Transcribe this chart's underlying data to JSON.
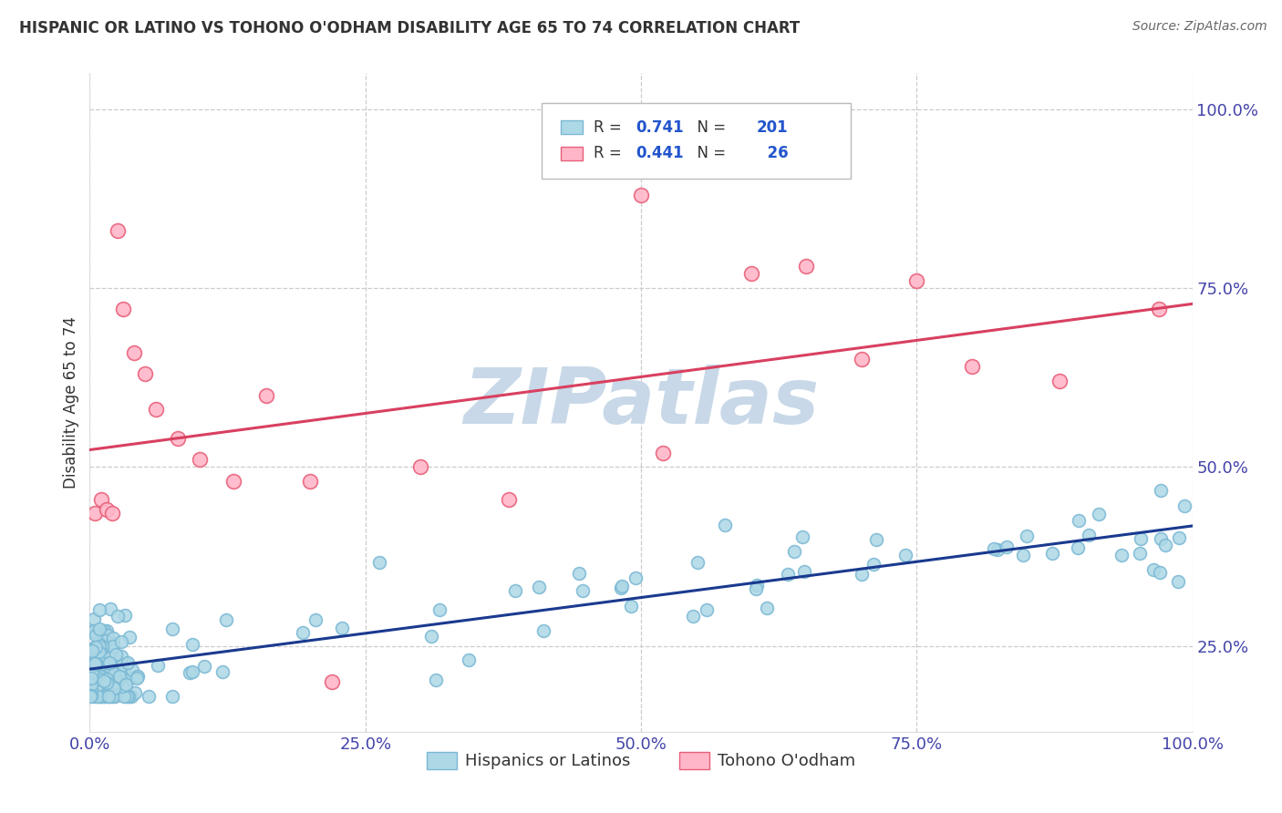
{
  "title": "HISPANIC OR LATINO VS TOHONO O'ODHAM DISABILITY AGE 65 TO 74 CORRELATION CHART",
  "source": "Source: ZipAtlas.com",
  "ylabel": "Disability Age 65 to 74",
  "xlim": [
    0.0,
    1.0
  ],
  "ylim": [
    0.13,
    1.05
  ],
  "xtick_labels": [
    "0.0%",
    "25.0%",
    "50.0%",
    "75.0%",
    "100.0%"
  ],
  "xtick_vals": [
    0.0,
    0.25,
    0.5,
    0.75,
    1.0
  ],
  "ytick_labels": [
    "25.0%",
    "50.0%",
    "75.0%",
    "100.0%"
  ],
  "ytick_vals": [
    0.25,
    0.5,
    0.75,
    1.0
  ],
  "blue_R": 0.741,
  "blue_N": 201,
  "pink_R": 0.441,
  "pink_N": 26,
  "blue_color": "#ADD8E6",
  "pink_color": "#FFB6C8",
  "blue_edge": "#7AB8D4",
  "pink_edge": "#E8607A",
  "blue_line_color": "#1A3A8F",
  "pink_line_color": "#D94060",
  "watermark_color": "#C8D8E8",
  "legend_label_blue": "Hispanics or Latinos",
  "legend_label_pink": "Tohono O'odham",
  "background_color": "#FFFFFF",
  "grid_color": "#CCCCCC",
  "title_color": "#333333",
  "source_color": "#666666",
  "axis_label_color": "#333333",
  "tick_color": "#4444AA",
  "blue_line_intercept": 0.215,
  "blue_line_slope": 0.205,
  "pink_line_intercept": 0.445,
  "pink_line_slope": 0.285,
  "figsize": [
    14.06,
    8.92
  ],
  "dpi": 100
}
